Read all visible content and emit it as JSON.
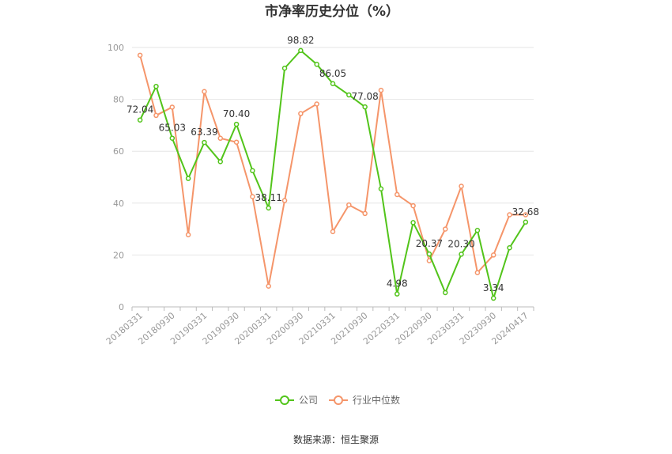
{
  "chart_data": {
    "type": "line",
    "title": "市净率历史分位（%）",
    "xlabel": "",
    "ylabel": "",
    "ylim": [
      0,
      100
    ],
    "yticks": [
      0,
      20,
      40,
      60,
      80,
      100
    ],
    "x": [
      "20180331",
      "20180630",
      "20180930",
      "20181231",
      "20190331",
      "20190630",
      "20190930",
      "20191231",
      "20200331",
      "20200630",
      "20200930",
      "20201231",
      "20210331",
      "20210630",
      "20210930",
      "20211231",
      "20220331",
      "20220630",
      "20220930",
      "20221231",
      "20230331",
      "20230630",
      "20230930",
      "20231231",
      "20240417"
    ],
    "xtick_labels": [
      "20180331",
      "20180930",
      "20190331",
      "20190930",
      "20200331",
      "20200930",
      "20210331",
      "20210930",
      "20220331",
      "20220930",
      "20230331",
      "20230930",
      "20240417"
    ],
    "series": [
      {
        "name": "公司",
        "color": "#52c41a",
        "values": [
          72.04,
          85.0,
          65.03,
          49.5,
          63.39,
          56.0,
          70.4,
          52.5,
          38.11,
          92.0,
          98.82,
          93.5,
          86.05,
          81.7,
          77.08,
          45.5,
          4.98,
          32.5,
          20.37,
          5.5,
          20.3,
          29.5,
          3.34,
          22.8,
          32.68
        ]
      },
      {
        "name": "行业中位数",
        "color": "#f5956a",
        "values": [
          97.0,
          73.8,
          77.0,
          27.8,
          83.0,
          65.0,
          63.5,
          42.5,
          8.0,
          41.0,
          74.5,
          78.2,
          29.0,
          39.3,
          36.0,
          83.5,
          43.3,
          39.0,
          17.8,
          30.0,
          46.5,
          13.2,
          20.0,
          35.5,
          35.5
        ]
      }
    ],
    "data_labels": [
      {
        "series": 0,
        "index": 0,
        "text": "72.04"
      },
      {
        "series": 0,
        "index": 2,
        "text": "65.03"
      },
      {
        "series": 0,
        "index": 4,
        "text": "63.39"
      },
      {
        "series": 0,
        "index": 6,
        "text": "70.40"
      },
      {
        "series": 0,
        "index": 8,
        "text": "38.11"
      },
      {
        "series": 0,
        "index": 10,
        "text": "98.82"
      },
      {
        "series": 0,
        "index": 12,
        "text": "86.05"
      },
      {
        "series": 0,
        "index": 14,
        "text": "77.08"
      },
      {
        "series": 0,
        "index": 16,
        "text": "4.98"
      },
      {
        "series": 0,
        "index": 18,
        "text": "20.37"
      },
      {
        "series": 0,
        "index": 20,
        "text": "20.30"
      },
      {
        "series": 0,
        "index": 22,
        "text": "3.34"
      },
      {
        "series": 0,
        "index": 24,
        "text": "32.68"
      }
    ],
    "grid": true,
    "legend_position": "bottom"
  },
  "source": "数据来源：恒生聚源"
}
